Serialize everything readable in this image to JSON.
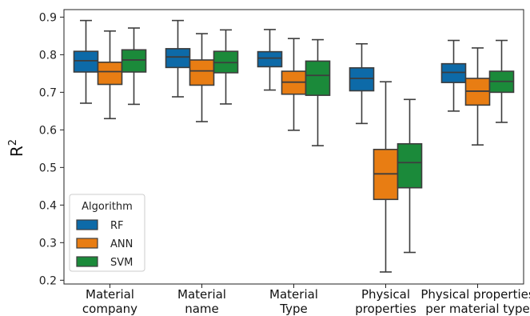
{
  "chart_data": {
    "type": "box",
    "ylabel": "R",
    "ylabel_superscript": "2",
    "ylim": [
      0.19,
      0.92
    ],
    "yticks": [
      "0.2",
      "0.3",
      "0.4",
      "0.5",
      "0.6",
      "0.7",
      "0.8",
      "0.9"
    ],
    "categories": [
      [
        "Material",
        "company"
      ],
      [
        "Material",
        "name"
      ],
      [
        "Material",
        "Type"
      ],
      [
        "Physical",
        "properties"
      ],
      [
        "Physical properties",
        "per material type"
      ]
    ],
    "legend": {
      "title": "Algorithm",
      "position": "lower-left"
    },
    "grid": false,
    "series": [
      {
        "name": "RF",
        "color": "#0d6aa8",
        "boxes": [
          {
            "whislo": 0.671,
            "q1": 0.754,
            "med": 0.784,
            "q3": 0.809,
            "whishi": 0.891
          },
          {
            "whislo": 0.688,
            "q1": 0.766,
            "med": 0.794,
            "q3": 0.816,
            "whishi": 0.891
          },
          {
            "whislo": 0.706,
            "q1": 0.768,
            "med": 0.791,
            "q3": 0.808,
            "whishi": 0.867
          },
          {
            "whislo": 0.617,
            "q1": 0.704,
            "med": 0.737,
            "q3": 0.765,
            "whishi": 0.829
          },
          {
            "whislo": 0.65,
            "q1": 0.726,
            "med": 0.753,
            "q3": 0.776,
            "whishi": 0.838
          }
        ]
      },
      {
        "name": "ANN",
        "color": "#e87d13",
        "boxes": [
          {
            "whislo": 0.63,
            "q1": 0.721,
            "med": 0.755,
            "q3": 0.78,
            "whishi": 0.863
          },
          {
            "whislo": 0.622,
            "q1": 0.719,
            "med": 0.757,
            "q3": 0.786,
            "whishi": 0.856
          },
          {
            "whislo": 0.599,
            "q1": 0.695,
            "med": 0.727,
            "q3": 0.756,
            "whishi": 0.843
          },
          {
            "whislo": 0.222,
            "q1": 0.415,
            "med": 0.483,
            "q3": 0.548,
            "whishi": 0.728
          },
          {
            "whislo": 0.56,
            "q1": 0.666,
            "med": 0.703,
            "q3": 0.737,
            "whishi": 0.818
          }
        ]
      },
      {
        "name": "SVM",
        "color": "#1b8a3a",
        "boxes": [
          {
            "whislo": 0.668,
            "q1": 0.754,
            "med": 0.786,
            "q3": 0.813,
            "whishi": 0.871
          },
          {
            "whislo": 0.669,
            "q1": 0.752,
            "med": 0.779,
            "q3": 0.809,
            "whishi": 0.866
          },
          {
            "whislo": 0.558,
            "q1": 0.692,
            "med": 0.745,
            "q3": 0.783,
            "whishi": 0.84
          },
          {
            "whislo": 0.274,
            "q1": 0.446,
            "med": 0.513,
            "q3": 0.563,
            "whishi": 0.681
          },
          {
            "whislo": 0.62,
            "q1": 0.7,
            "med": 0.729,
            "q3": 0.756,
            "whishi": 0.838
          }
        ]
      }
    ]
  }
}
